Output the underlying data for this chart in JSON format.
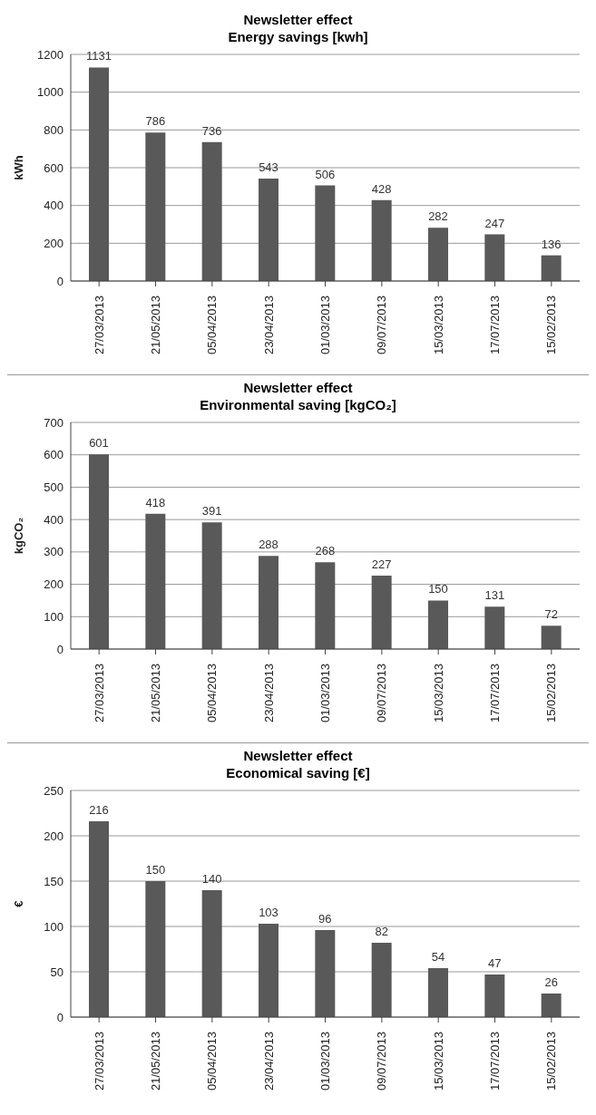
{
  "chart_data": [
    {
      "type": "bar",
      "title": "Newsletter effect",
      "subtitle": "Energy savings [kwh]",
      "ylabel": "kWh",
      "categories": [
        "27/03/2013",
        "21/05/2013",
        "05/04/2013",
        "23/04/2013",
        "01/03/2013",
        "09/07/2013",
        "15/03/2013",
        "17/07/2013",
        "15/02/2013"
      ],
      "values": [
        1131,
        786,
        736,
        543,
        506,
        428,
        282,
        247,
        136
      ],
      "color": "#595959",
      "ylim": [
        0,
        1200
      ],
      "yticks": [
        0,
        200,
        400,
        600,
        800,
        1000,
        1200
      ],
      "grid": "y",
      "data_labels": true
    },
    {
      "type": "bar",
      "title": "Newsletter effect",
      "subtitle": "Environmental saving [kgCO₂]",
      "ylabel": "kgCO₂",
      "categories": [
        "27/03/2013",
        "21/05/2013",
        "05/04/2013",
        "23/04/2013",
        "01/03/2013",
        "09/07/2013",
        "15/03/2013",
        "17/07/2013",
        "15/02/2013"
      ],
      "values": [
        601,
        418,
        391,
        288,
        268,
        227,
        150,
        131,
        72
      ],
      "color": "#595959",
      "ylim": [
        0,
        700
      ],
      "yticks": [
        0,
        100,
        200,
        300,
        400,
        500,
        600,
        700
      ],
      "grid": "y",
      "data_labels": true
    },
    {
      "type": "bar",
      "title": "Newsletter effect",
      "subtitle": "Economical saving [€]",
      "ylabel": "€",
      "categories": [
        "27/03/2013",
        "21/05/2013",
        "05/04/2013",
        "23/04/2013",
        "01/03/2013",
        "09/07/2013",
        "15/03/2013",
        "17/07/2013",
        "15/02/2013"
      ],
      "values": [
        216,
        150,
        140,
        103,
        96,
        82,
        54,
        47,
        26
      ],
      "color": "#595959",
      "ylim": [
        0,
        250
      ],
      "yticks": [
        0,
        50,
        100,
        150,
        200,
        250
      ],
      "grid": "y",
      "data_labels": true
    }
  ]
}
